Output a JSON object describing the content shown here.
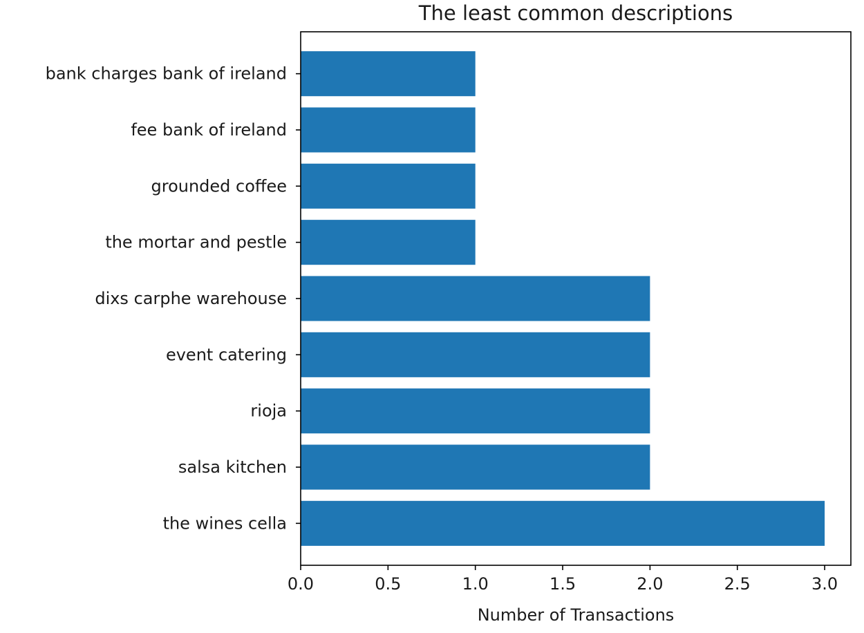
{
  "chart_data": {
    "type": "bar",
    "orientation": "horizontal",
    "title": "The least common descriptions",
    "xlabel": "Number of Transactions",
    "ylabel": "",
    "categories": [
      "the wines cella",
      "salsa kitchen",
      "rioja",
      "event catering",
      "dixs carphe warehouse",
      "the mortar and pestle",
      "grounded coffee",
      "fee bank of ireland",
      "bank charges bank of ireland"
    ],
    "values": [
      3,
      2,
      2,
      2,
      2,
      1,
      1,
      1,
      1
    ],
    "xlim": [
      0,
      3.15
    ],
    "xticks": [
      0.0,
      0.5,
      1.0,
      1.5,
      2.0,
      2.5,
      3.0
    ],
    "xtick_labels": [
      "0.0",
      "0.5",
      "1.0",
      "1.5",
      "2.0",
      "2.5",
      "3.0"
    ],
    "bar_color": "#1f77b4",
    "grid": false,
    "legend": "none"
  }
}
